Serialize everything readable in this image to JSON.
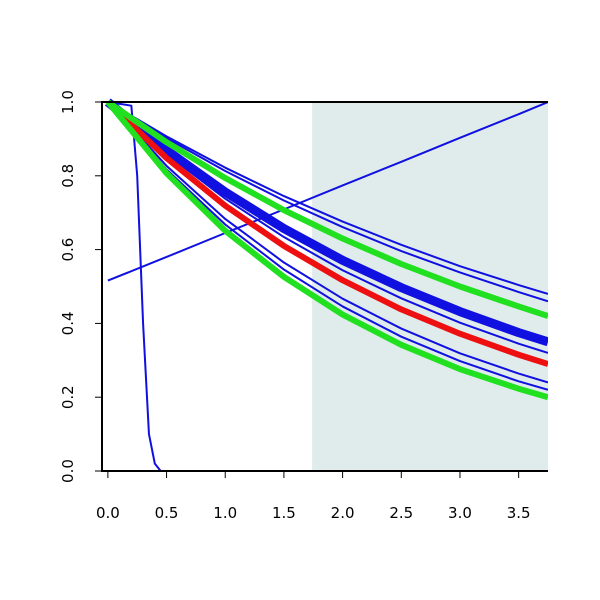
{
  "chart_data": {
    "type": "line",
    "x": [
      0,
      0.5,
      1.0,
      1.5,
      2.0,
      2.5,
      3.0,
      3.5,
      3.75
    ],
    "xlim": [
      -0.05,
      3.75
    ],
    "ylim": [
      0,
      1
    ],
    "xticks": [
      {
        "value": 0,
        "label": "0.0"
      },
      0.5,
      {
        "value": 1,
        "label": "1.0"
      },
      1.5,
      {
        "value": 2,
        "label": "2.0"
      },
      2.5,
      {
        "value": 3,
        "label": "3.0"
      },
      3.5
    ],
    "yticks": [
      {
        "value": 0,
        "label": "0.0"
      },
      0.2,
      0.4,
      0.6,
      0.8,
      {
        "value": 1,
        "label": "1.0"
      }
    ],
    "shade": {
      "x": [
        1.74,
        3.75
      ],
      "color": "#e0ecec"
    },
    "series": [
      {
        "color": "#1010e0",
        "width": 2,
        "values": [
          1,
          0.907,
          0.822,
          0.745,
          0.676,
          0.613,
          0.555,
          0.504,
          0.48
        ]
      },
      {
        "color": "#1010e0",
        "width": 2,
        "values": [
          1,
          0.902,
          0.813,
          0.733,
          0.661,
          0.596,
          0.538,
          0.485,
          0.46
        ]
      },
      {
        "color": "#1010e0",
        "width": 2,
        "values": [
          1,
          0.859,
          0.738,
          0.634,
          0.544,
          0.468,
          0.402,
          0.345,
          0.32
        ]
      },
      {
        "color": "#1010e0",
        "width": 2,
        "values": [
          1,
          0.827,
          0.683,
          0.565,
          0.467,
          0.386,
          0.319,
          0.264,
          0.24
        ]
      },
      {
        "color": "#1010e0",
        "width": 2,
        "values": [
          1,
          0.817,
          0.668,
          0.546,
          0.446,
          0.364,
          0.298,
          0.243,
          0.22
        ]
      },
      {
        "color": "#1010e0",
        "width": 9,
        "values": [
          1,
          0.869,
          0.756,
          0.657,
          0.571,
          0.497,
          0.432,
          0.375,
          0.35
        ]
      },
      {
        "color": "#1010e0",
        "width": 2,
        "values": [
          0.516,
          0.58,
          0.645,
          0.709,
          0.774,
          0.838,
          0.903,
          0.967,
          1.0
        ]
      },
      {
        "color": "#1010e0",
        "width": 2,
        "x": [
          0,
          0.2,
          0.25,
          0.3,
          0.35,
          0.4,
          0.45,
          3.75
        ],
        "values": [
          1,
          0.99,
          0.8,
          0.4,
          0.1,
          0.02,
          0,
          0
        ]
      },
      {
        "color": "#ee1010",
        "width": 6,
        "values": [
          1,
          0.848,
          0.719,
          0.61,
          0.517,
          0.438,
          0.372,
          0.315,
          0.29
        ]
      },
      {
        "color": "#20e020",
        "width": 6,
        "values": [
          1,
          0.891,
          0.794,
          0.707,
          0.63,
          0.561,
          0.5,
          0.446,
          0.42
        ]
      },
      {
        "color": "#20e020",
        "width": 6,
        "values": [
          1,
          0.807,
          0.651,
          0.526,
          0.424,
          0.342,
          0.276,
          0.223,
          0.2
        ]
      }
    ]
  }
}
